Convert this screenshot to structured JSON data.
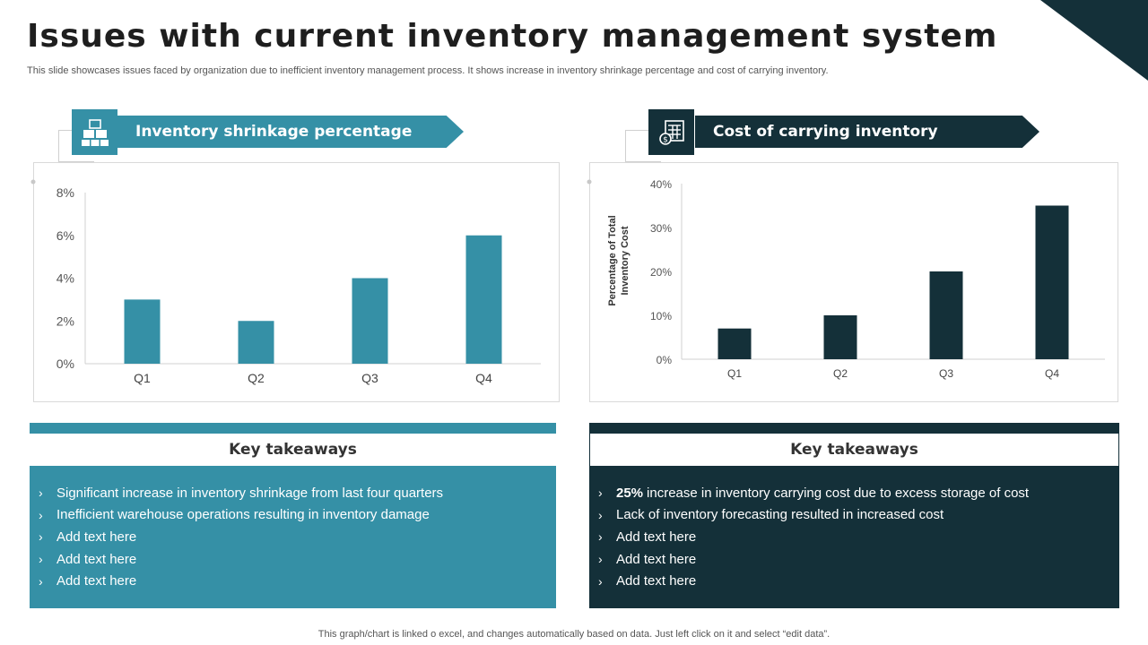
{
  "page": {
    "title": "Issues with current inventory management system",
    "subtitle": "This slide showcases issues faced by organization due to inefficient inventory management process. It shows increase in inventory shrinkage percentage and cost of carrying inventory.",
    "footer": "This graph/chart is linked o excel, and changes automatically based on data. Just left click on it and select “edit data”."
  },
  "colors": {
    "teal": "#3590a6",
    "dark": "#143039"
  },
  "left_panel": {
    "header": "Inventory shrinkage percentage",
    "icon": "boxes-icon",
    "takeaways_title": "Key takeaways",
    "takeaways": [
      "Significant increase in inventory  shrinkage from last four quarters",
      "Inefficient  warehouse operations resulting in inventory damage",
      "Add text here",
      "Add text here",
      "Add text here"
    ]
  },
  "right_panel": {
    "header": "Cost of carrying inventory",
    "icon": "calculator-icon",
    "takeaways_title": "Key takeaways",
    "takeaways_bold": "25%",
    "takeaways": [
      "increase in inventory  carrying cost due to excess storage of cost",
      "Lack of inventory  forecasting resulted in increased cost",
      "Add text here",
      "Add text here",
      "Add text here"
    ]
  },
  "chart_data": [
    {
      "type": "bar",
      "title": "Inventory shrinkage percentage",
      "categories": [
        "Q1",
        "Q2",
        "Q3",
        "Q4"
      ],
      "values": [
        3,
        2,
        4,
        6
      ],
      "ylim": [
        0,
        8
      ],
      "yticks": [
        0,
        2,
        4,
        6,
        8
      ],
      "ytick_labels": [
        "0%",
        "2%",
        "4%",
        "6%",
        "8%"
      ],
      "xlabel": "",
      "ylabel": "",
      "color": "#3590a6",
      "grid": false
    },
    {
      "type": "bar",
      "title": "Cost of carrying inventory",
      "categories": [
        "Q1",
        "Q2",
        "Q3",
        "Q4"
      ],
      "values": [
        7,
        10,
        20,
        35
      ],
      "ylim": [
        0,
        40
      ],
      "yticks": [
        0,
        10,
        20,
        30,
        40
      ],
      "ytick_labels": [
        "0%",
        "10%",
        "20%",
        "30%",
        "40%"
      ],
      "xlabel": "",
      "ylabel": "Percentage of Total Inventory Cost",
      "color": "#143039",
      "grid": false
    }
  ]
}
